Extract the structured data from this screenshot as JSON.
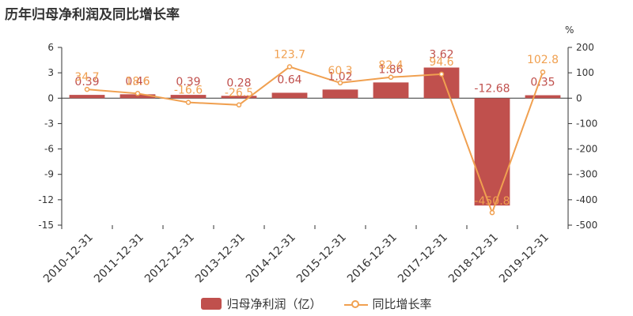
{
  "title": "历年归母净利润及同比增长率",
  "legend": {
    "bar_label": "归母净利润（亿）",
    "line_label": "同比增长率"
  },
  "colors": {
    "bar": "#c0504d",
    "line": "#f0a050",
    "axis": "#333333"
  },
  "chart_data": {
    "type": "bar",
    "categories": [
      "2010-12-31",
      "2011-12-31",
      "2012-12-31",
      "2013-12-31",
      "2014-12-31",
      "2015-12-31",
      "2016-12-31",
      "2017-12-31",
      "2018-12-31",
      "2019-12-31"
    ],
    "series": [
      {
        "name": "归母净利润（亿）",
        "type": "bar",
        "axis": "left",
        "values": [
          0.39,
          0.46,
          0.39,
          0.28,
          0.64,
          1.02,
          1.86,
          3.62,
          -12.68,
          0.35
        ],
        "labels": [
          "0.39",
          "0.46",
          "0.39",
          "0.28",
          "0.64",
          "1.02",
          "1.86",
          "3.62",
          "-12.68",
          "0.35"
        ]
      },
      {
        "name": "同比增长率",
        "type": "line",
        "axis": "right",
        "values": [
          34.7,
          18.6,
          -16.6,
          -26.5,
          123.7,
          60.3,
          82.4,
          94.6,
          -450.8,
          102.8
        ],
        "labels": [
          "34.7",
          "18.6",
          "-16.6",
          "-26.5",
          "123.7",
          "60.3",
          "82.4",
          "94.6",
          "-450.8",
          "102.8"
        ]
      }
    ],
    "y_left": {
      "min": -15,
      "max": 6,
      "ticks": [
        6,
        3,
        0,
        -3,
        -6,
        -9,
        -12,
        -15
      ]
    },
    "y_right": {
      "min": -500,
      "max": 200,
      "unit": "%",
      "ticks": [
        200,
        100,
        0,
        -100,
        -200,
        -300,
        -400,
        -500
      ]
    },
    "grid": false,
    "legend_position": "bottom"
  }
}
